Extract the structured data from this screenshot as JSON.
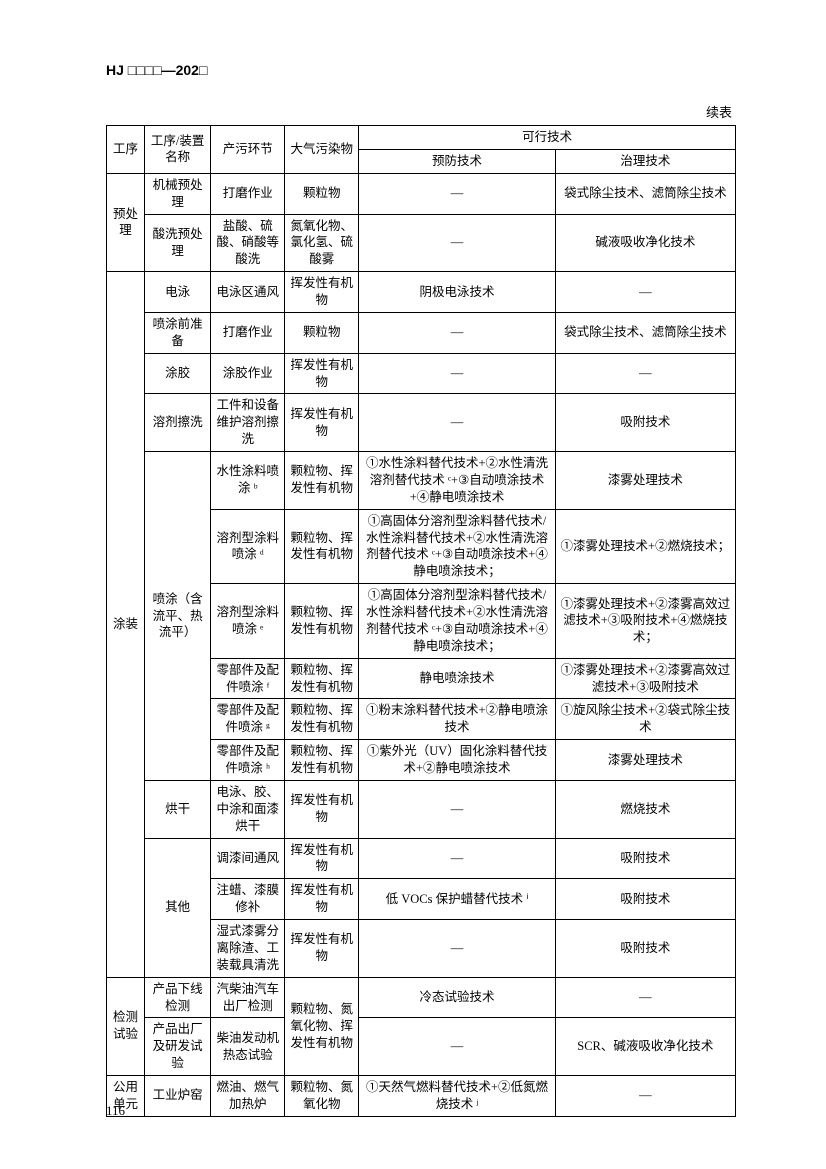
{
  "header_code": "HJ □□□□—202□",
  "cont_label": "续表",
  "page_num": "116",
  "col_widths": [
    "38",
    "66",
    "74",
    "74",
    "196",
    "180"
  ],
  "headers": {
    "h1": "工序",
    "h2": "工序/装置名称",
    "h3": "产污环节",
    "h4": "大气污染物",
    "h5": "可行技术",
    "h5a": "预防技术",
    "h5b": "治理技术"
  },
  "rows": [
    {
      "proc": "预处理",
      "proc_rs": 2,
      "dev": "机械预处理",
      "step": "打磨作业",
      "poll": "颗粒物",
      "prev": "—",
      "treat": "袋式除尘技术、滤筒除尘技术"
    },
    {
      "dev": "酸洗预处理",
      "step": "盐酸、硫酸、硝酸等酸洗",
      "poll": "氮氧化物、氯化氢、硫酸雾",
      "prev": "—",
      "treat": "碱液吸收净化技术"
    },
    {
      "proc": "涂装",
      "proc_rs": 14,
      "dev": "电泳",
      "step": "电泳区通风",
      "poll": "挥发性有机物",
      "prev": "阴极电泳技术",
      "treat": "—"
    },
    {
      "dev": "喷涂前准备",
      "step": "打磨作业",
      "poll": "颗粒物",
      "prev": "—",
      "treat": "袋式除尘技术、滤筒除尘技术"
    },
    {
      "dev": "涂胶",
      "step": "涂胶作业",
      "poll": "挥发性有机物",
      "prev": "—",
      "treat": "—"
    },
    {
      "dev": "溶剂擦洗",
      "step": "工件和设备维护溶剂擦洗",
      "poll": "挥发性有机物",
      "prev": "—",
      "treat": "吸附技术"
    },
    {
      "dev": "喷涂（含流平、热流平）",
      "dev_rs": 6,
      "step": "水性涂料喷涂 ᵇ",
      "poll": "颗粒物、挥发性有机物",
      "prev": "①水性涂料替代技术+②水性清洗溶剂替代技术 ᶜ+③自动喷涂技术+④静电喷涂技术",
      "treat": "漆雾处理技术"
    },
    {
      "step": "溶剂型涂料喷涂 ᵈ",
      "poll": "颗粒物、挥发性有机物",
      "prev": "①高固体分溶剂型涂料替代技术/水性涂料替代技术+②水性清洗溶剂替代技术 ᶜ+③自动喷涂技术+④静电喷涂技术；",
      "treat": "①漆雾处理技术+②燃烧技术；"
    },
    {
      "step": "溶剂型涂料喷涂 ᵉ",
      "poll": "颗粒物、挥发性有机物",
      "prev": "①高固体分溶剂型涂料替代技术/水性涂料替代技术+②水性清洗溶剂替代技术 ᶜ+③自动喷涂技术+④静电喷涂技术；",
      "treat": "①漆雾处理技术+②漆雾高效过滤技术+③吸附技术+④燃烧技术；"
    },
    {
      "step": "零部件及配件喷涂 ᶠ",
      "poll": "颗粒物、挥发性有机物",
      "prev": "静电喷涂技术",
      "treat": "①漆雾处理技术+②漆雾高效过滤技术+③吸附技术"
    },
    {
      "step": "零部件及配件喷涂 ᵍ",
      "poll": "颗粒物、挥发性有机物",
      "prev": "①粉末涂料替代技术+②静电喷涂技术",
      "treat": "①旋风除尘技术+②袋式除尘技术"
    },
    {
      "step": "零部件及配件喷涂 ʰ",
      "poll": "颗粒物、挥发性有机物",
      "prev": "①紫外光（UV）固化涂料替代技术+②静电喷涂技术",
      "treat": "漆雾处理技术"
    },
    {
      "dev": "烘干",
      "step": "电泳、胶、中涂和面漆烘干",
      "poll": "挥发性有机物",
      "prev": "—",
      "treat": "燃烧技术"
    },
    {
      "dev": "其他",
      "dev_rs": 3,
      "step": "调漆间通风",
      "poll": "挥发性有机物",
      "prev": "—",
      "treat": "吸附技术"
    },
    {
      "step": "注蜡、漆膜修补",
      "poll": "挥发性有机物",
      "prev": "低 VOCs 保护蜡替代技术 ⁱ",
      "treat": "吸附技术"
    },
    {
      "step": "湿式漆雾分离除渣、工装载具清洗",
      "poll": "挥发性有机物",
      "prev": "—",
      "treat": "吸附技术"
    },
    {
      "proc": "检测试验",
      "proc_rs": 2,
      "dev": "产品下线检测",
      "step": "汽柴油汽车出厂检测",
      "poll": "颗粒物、氮氧化物、挥发性有机物",
      "poll_rs": 2,
      "prev": "冷态试验技术",
      "treat": "—"
    },
    {
      "dev": "产品出厂及研发试验",
      "step": "柴油发动机热态试验",
      "prev": "—",
      "treat": "SCR、碱液吸收净化技术"
    },
    {
      "proc": "公用单元",
      "dev": "工业炉窑",
      "step": "燃油、燃气加热炉",
      "poll": "颗粒物、氮氧化物",
      "prev": "①天然气燃料替代技术+②低氮燃烧技术 ʲ",
      "treat": "—"
    }
  ]
}
